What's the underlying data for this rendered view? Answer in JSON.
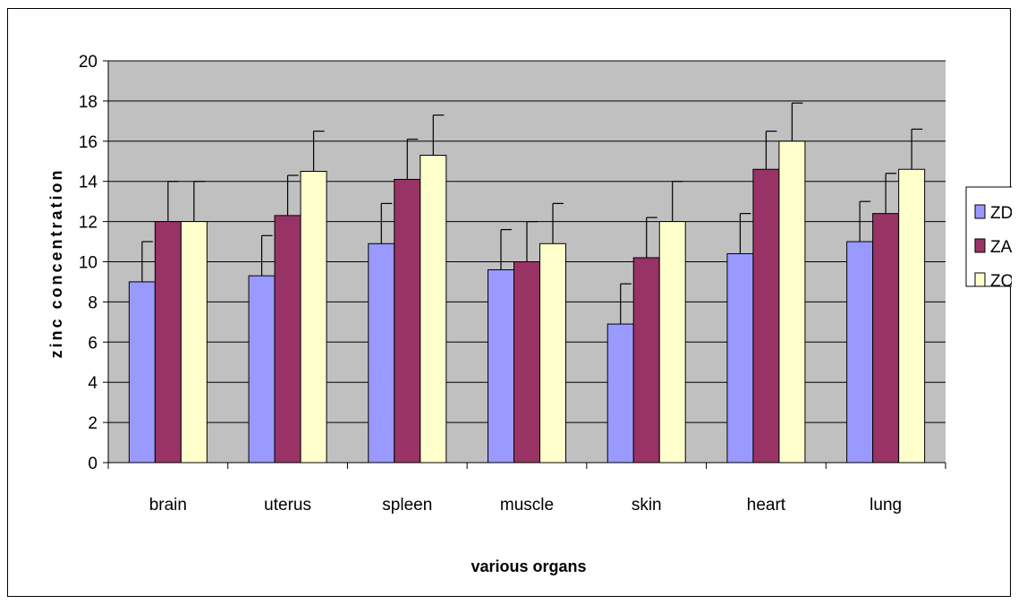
{
  "chart_data": {
    "type": "bar",
    "title": "",
    "xlabel": "various organs",
    "ylabel": "zinc concentration",
    "ylim": [
      0,
      20
    ],
    "yticks": [
      0,
      2,
      4,
      6,
      8,
      10,
      12,
      14,
      16,
      18,
      20
    ],
    "grid": true,
    "legend_position": "right",
    "categories": [
      "brain",
      "uterus",
      "spleen",
      "muscle",
      "skin",
      "heart",
      "lung"
    ],
    "series": [
      {
        "name": "ZD",
        "color": "#9999ff",
        "values": [
          9.0,
          9.3,
          10.9,
          9.6,
          6.9,
          10.4,
          11.0
        ],
        "errors": [
          2.0,
          2.0,
          2.0,
          2.0,
          2.0,
          2.0,
          2.0
        ]
      },
      {
        "name": "ZA",
        "color": "#993366",
        "values": [
          12.0,
          12.3,
          14.1,
          10.0,
          10.2,
          14.6,
          12.4
        ],
        "errors": [
          2.0,
          2.0,
          2.0,
          2.0,
          2.0,
          1.9,
          2.0
        ]
      },
      {
        "name": "ZO",
        "color": "#ffffcc",
        "values": [
          12.0,
          14.5,
          15.3,
          10.9,
          12.0,
          16.0,
          14.6
        ],
        "errors": [
          2.0,
          2.0,
          2.0,
          2.0,
          2.0,
          1.9,
          2.0
        ]
      }
    ],
    "plot_background": "#c0c0c0"
  }
}
